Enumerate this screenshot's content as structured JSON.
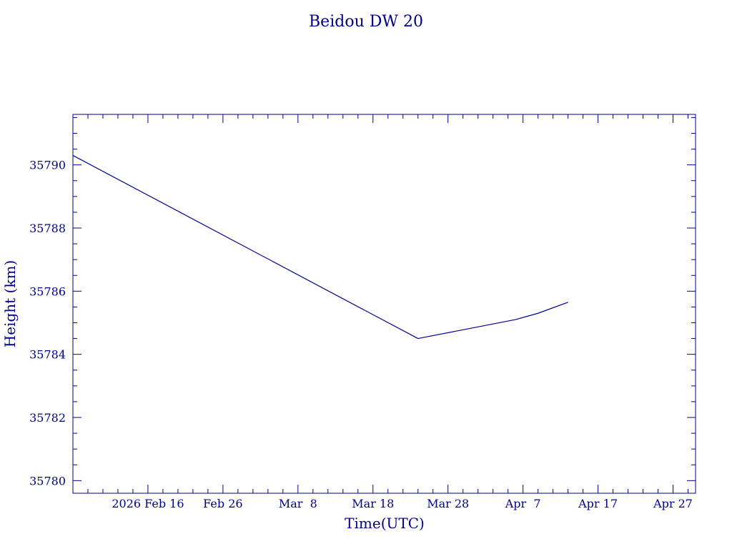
{
  "chart_data": {
    "type": "line",
    "title": "Beidou DW 20",
    "xlabel": "Time(UTC)",
    "ylabel": "Height (km)",
    "color": "#00008b",
    "xlim": [
      "2026-02-06",
      "2026-04-30"
    ],
    "ylim": [
      35779.6,
      35791.6
    ],
    "x_ticks": [
      {
        "date": "2026-02-16",
        "label": "2026 Feb 16"
      },
      {
        "date": "2026-02-26",
        "label": "Feb 26"
      },
      {
        "date": "2026-03-08",
        "label": "Mar  8"
      },
      {
        "date": "2026-03-18",
        "label": "Mar 18"
      },
      {
        "date": "2026-03-28",
        "label": "Mar 28"
      },
      {
        "date": "2026-04-07",
        "label": "Apr  7"
      },
      {
        "date": "2026-04-17",
        "label": "Apr 17"
      },
      {
        "date": "2026-04-27",
        "label": "Apr 27"
      }
    ],
    "y_ticks": [
      35780,
      35782,
      35784,
      35786,
      35788,
      35790
    ],
    "series": [
      {
        "points": [
          {
            "x": "2026-02-06",
            "y": 35790.3
          },
          {
            "x": "2026-03-24",
            "y": 35784.5
          },
          {
            "x": "2026-04-06",
            "y": 35785.1
          },
          {
            "x": "2026-04-09",
            "y": 35785.3
          },
          {
            "x": "2026-04-13",
            "y": 35785.65
          }
        ]
      }
    ]
  }
}
